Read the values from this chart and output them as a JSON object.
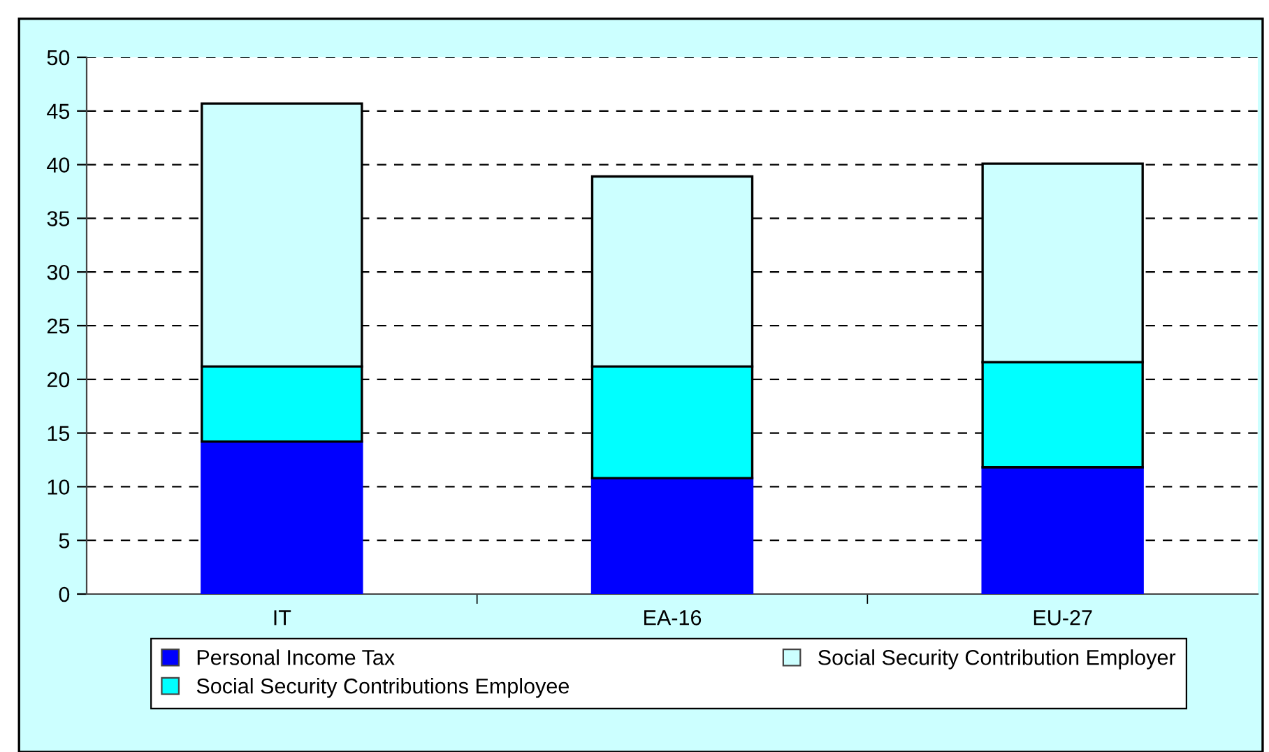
{
  "chart_data": {
    "type": "bar",
    "stacked": true,
    "categories": [
      "IT",
      "EA-16",
      "EU-27"
    ],
    "series": [
      {
        "name": "Personal Income Tax",
        "color": "#0000ff",
        "values": [
          14.2,
          10.8,
          11.8
        ]
      },
      {
        "name": "Social Security Contributions Employee",
        "color": "#00ffff",
        "values": [
          7.0,
          10.4,
          9.8
        ]
      },
      {
        "name": "Social Security Contribution Employer",
        "color": "#ccffff",
        "values": [
          24.5,
          17.7,
          18.5
        ]
      }
    ],
    "ylim": [
      0,
      50
    ],
    "yticks": [
      0,
      5,
      10,
      15,
      20,
      25,
      30,
      35,
      40,
      45,
      50
    ],
    "grid": "y",
    "legend": "bottom"
  }
}
